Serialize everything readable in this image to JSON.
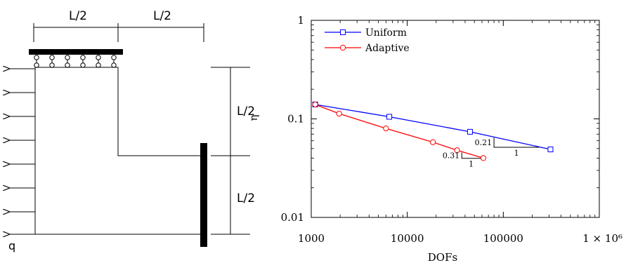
{
  "diagram": {
    "dim_top_left": "L/2",
    "dim_top_right": "L/2",
    "dim_right_top": "L/2",
    "dim_right_bottom": "L/2",
    "load_label": "q"
  },
  "chart_data": {
    "type": "line",
    "title": "",
    "xlabel": "DOFs",
    "ylabel": "η",
    "xscale": "log",
    "yscale": "log",
    "xlim": [
      1000,
      1000000
    ],
    "ylim": [
      0.01,
      1
    ],
    "xticks": [
      {
        "value": 1000,
        "label": "1000"
      },
      {
        "value": 10000,
        "label": "10000"
      },
      {
        "value": 100000,
        "label": "100000"
      },
      {
        "value": 1000000,
        "label": "1 × 10⁶"
      }
    ],
    "yticks": [
      {
        "value": 1,
        "label": "1"
      },
      {
        "value": 0.1,
        "label": "0.1"
      },
      {
        "value": 0.01,
        "label": "0.01"
      }
    ],
    "legend_position": "top-left",
    "series": [
      {
        "name": "Uniform",
        "color": "#0000ff",
        "marker": "square",
        "x": [
          1100,
          6500,
          45000,
          310000
        ],
        "y": [
          0.14,
          0.105,
          0.074,
          0.049
        ]
      },
      {
        "name": "Adaptive",
        "color": "#ff0000",
        "marker": "circle",
        "x": [
          1100,
          1950,
          6000,
          18500,
          33000,
          62000
        ],
        "y": [
          0.14,
          0.113,
          0.08,
          0.058,
          0.048,
          0.04
        ]
      }
    ],
    "annotations": [
      {
        "type": "slope",
        "slope_label": "0.21",
        "run_label": "1",
        "x0": 80000,
        "x1": 235000,
        "y0": 0.0515,
        "y1": 0.0645
      },
      {
        "type": "slope",
        "slope_label": "0.31",
        "run_label": "1",
        "x0": 37000,
        "x1": 58000,
        "y0": 0.0398,
        "y1": 0.0455
      }
    ]
  }
}
